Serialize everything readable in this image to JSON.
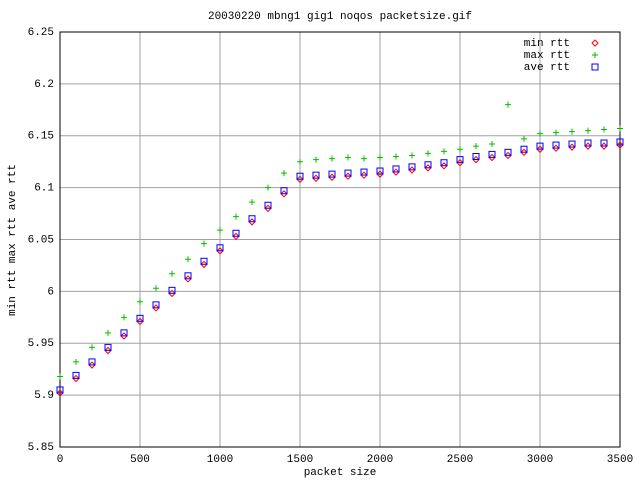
{
  "chart_data": {
    "type": "scatter",
    "title": "20030220 mbng1 gig1 noqos packetsize.gif",
    "x_label": "packet size",
    "y_label": "min rtt max rtt ave rtt",
    "x": [
      0,
      100,
      200,
      300,
      400,
      500,
      600,
      700,
      800,
      900,
      1000,
      1100,
      1200,
      1300,
      1400,
      1500,
      1600,
      1700,
      1800,
      1900,
      2000,
      2100,
      2200,
      2300,
      2400,
      2500,
      2600,
      2700,
      2800,
      2900,
      3000,
      3100,
      3200,
      3300,
      3400,
      3500
    ],
    "series": [
      {
        "name": "min rtt",
        "color": "#ff0000",
        "marker": "diamond",
        "values": [
          5.902,
          5.916,
          5.929,
          5.943,
          5.957,
          5.971,
          5.984,
          5.998,
          6.012,
          6.026,
          6.039,
          6.053,
          6.067,
          6.08,
          6.094,
          6.108,
          6.109,
          6.11,
          6.111,
          6.112,
          6.113,
          6.115,
          6.117,
          6.119,
          6.121,
          6.124,
          6.127,
          6.129,
          6.131,
          6.134,
          6.137,
          6.138,
          6.139,
          6.14,
          6.14,
          6.141
        ]
      },
      {
        "name": "max rtt",
        "color": "#00c000",
        "marker": "plus",
        "values": [
          5.918,
          5.932,
          5.946,
          5.96,
          5.975,
          5.99,
          6.003,
          6.017,
          6.031,
          6.046,
          6.059,
          6.072,
          6.086,
          6.1,
          6.114,
          6.125,
          6.127,
          6.128,
          6.129,
          6.128,
          6.129,
          6.13,
          6.131,
          6.133,
          6.135,
          6.137,
          6.14,
          6.142,
          6.18,
          6.147,
          6.152,
          6.153,
          6.154,
          6.155,
          6.156,
          6.157
        ]
      },
      {
        "name": "ave rtt",
        "color": "#0000ff",
        "marker": "square",
        "values": [
          5.905,
          5.919,
          5.932,
          5.946,
          5.96,
          5.974,
          5.987,
          6.001,
          6.015,
          6.029,
          6.042,
          6.056,
          6.07,
          6.083,
          6.097,
          6.111,
          6.112,
          6.113,
          6.114,
          6.115,
          6.116,
          6.118,
          6.12,
          6.122,
          6.124,
          6.127,
          6.13,
          6.132,
          6.134,
          6.137,
          6.14,
          6.141,
          6.142,
          6.143,
          6.143,
          6.144
        ]
      }
    ],
    "xlim": [
      0,
      3500
    ],
    "xticks": [
      0,
      500,
      1000,
      1500,
      2000,
      2500,
      3000,
      3500
    ],
    "ylim": [
      5.85,
      6.25
    ],
    "yticks": [
      5.85,
      5.9,
      5.95,
      6,
      6.05,
      6.1,
      6.15,
      6.2,
      6.25
    ],
    "grid": true,
    "legend": "top-right"
  }
}
